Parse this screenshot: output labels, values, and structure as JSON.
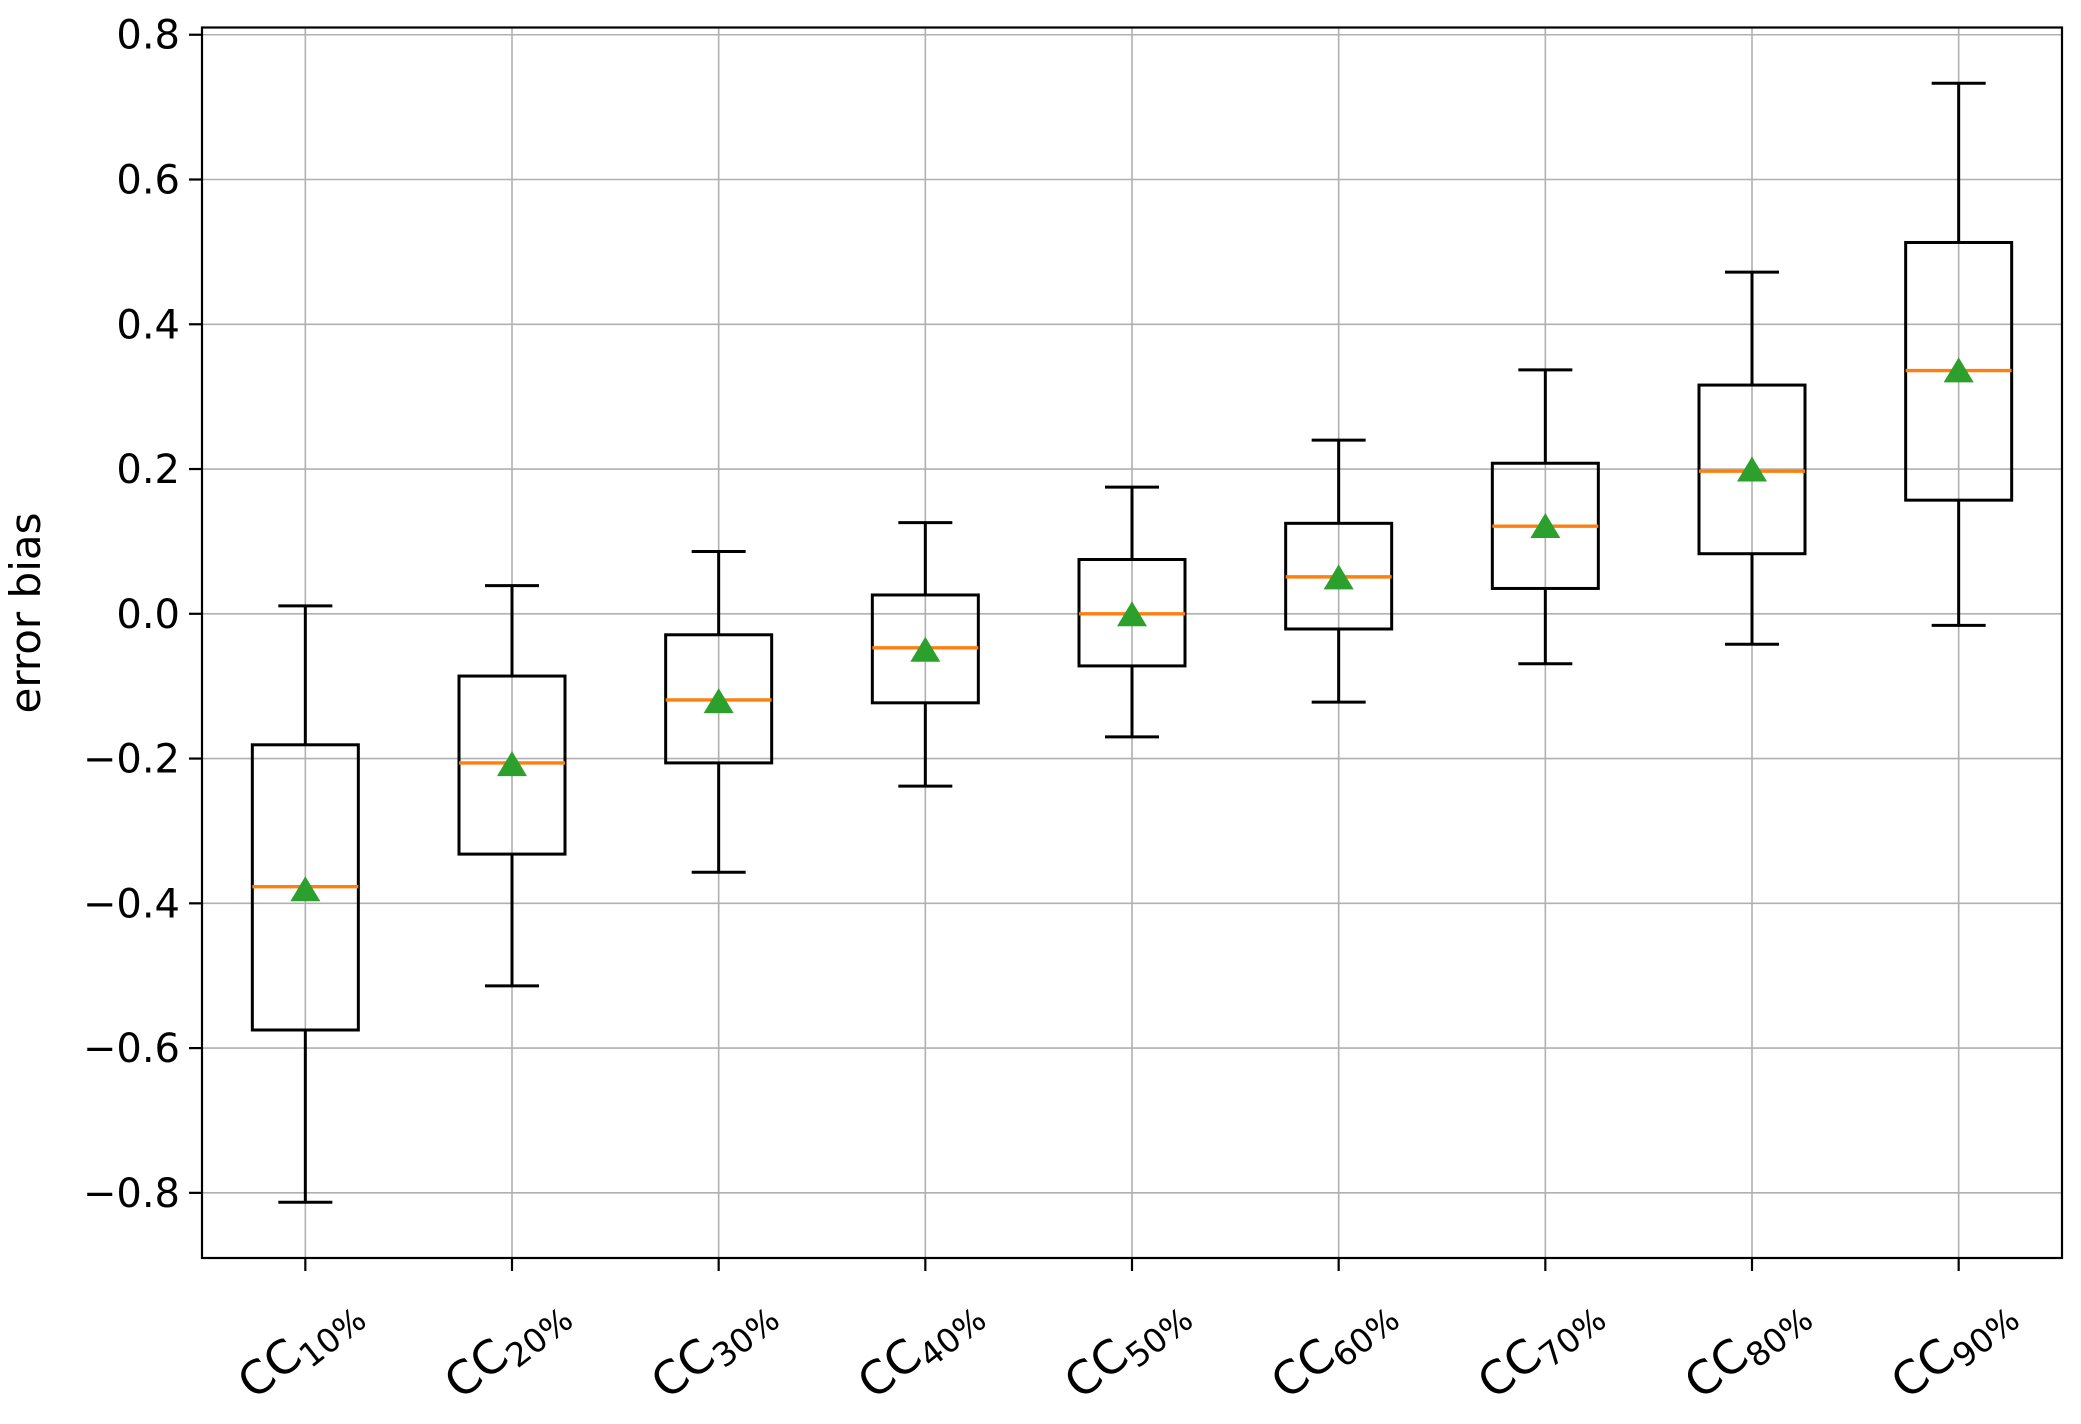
{
  "chart_data": {
    "type": "boxplot",
    "title": "",
    "xlabel": "",
    "ylabel": "error bias",
    "ylim": [
      -0.89,
      0.81
    ],
    "yticks": [
      -0.8,
      -0.6,
      -0.4,
      -0.2,
      0.0,
      0.2,
      0.4,
      0.6,
      0.8
    ],
    "grid": true,
    "legend": null,
    "categories": [
      {
        "base": "CC",
        "sub": "10%",
        "label": "CC10%"
      },
      {
        "base": "CC",
        "sub": "20%",
        "label": "CC20%"
      },
      {
        "base": "CC",
        "sub": "30%",
        "label": "CC30%"
      },
      {
        "base": "CC",
        "sub": "40%",
        "label": "CC40%"
      },
      {
        "base": "CC",
        "sub": "50%",
        "label": "CC50%"
      },
      {
        "base": "CC",
        "sub": "60%",
        "label": "CC60%"
      },
      {
        "base": "CC",
        "sub": "70%",
        "label": "CC70%"
      },
      {
        "base": "CC",
        "sub": "80%",
        "label": "CC80%"
      },
      {
        "base": "CC",
        "sub": "90%",
        "label": "CC90%"
      }
    ],
    "series": [
      {
        "label": "CC10%",
        "whislo": -0.813,
        "q1": -0.575,
        "med": -0.377,
        "mean": -0.382,
        "q3": -0.181,
        "whishi": 0.011
      },
      {
        "label": "CC20%",
        "whislo": -0.514,
        "q1": -0.332,
        "med": -0.206,
        "mean": -0.209,
        "q3": -0.086,
        "whishi": 0.039
      },
      {
        "label": "CC30%",
        "whislo": -0.357,
        "q1": -0.206,
        "med": -0.119,
        "mean": -0.122,
        "q3": -0.029,
        "whishi": 0.086
      },
      {
        "label": "CC40%",
        "whislo": -0.238,
        "q1": -0.123,
        "med": -0.047,
        "mean": -0.051,
        "q3": 0.026,
        "whishi": 0.126
      },
      {
        "label": "CC50%",
        "whislo": -0.17,
        "q1": -0.072,
        "med": 0.0,
        "mean": -0.002,
        "q3": 0.075,
        "whishi": 0.175
      },
      {
        "label": "CC60%",
        "whislo": -0.122,
        "q1": -0.021,
        "med": 0.051,
        "mean": 0.049,
        "q3": 0.125,
        "whishi": 0.24
      },
      {
        "label": "CC70%",
        "whislo": -0.069,
        "q1": 0.035,
        "med": 0.121,
        "mean": 0.12,
        "q3": 0.208,
        "whishi": 0.337
      },
      {
        "label": "CC80%",
        "whislo": -0.042,
        "q1": 0.083,
        "med": 0.197,
        "mean": 0.198,
        "q3": 0.316,
        "whishi": 0.472
      },
      {
        "label": "CC90%",
        "whislo": -0.016,
        "q1": 0.157,
        "med": 0.336,
        "mean": 0.335,
        "q3": 0.513,
        "whishi": 0.733
      }
    ],
    "colors": {
      "box": "#000000",
      "whisker": "#000000",
      "median": "#ff7f0e",
      "mean_marker": "#2ca02c",
      "grid": "#b0b0b0",
      "frame": "#000000",
      "background": "#ffffff"
    }
  }
}
